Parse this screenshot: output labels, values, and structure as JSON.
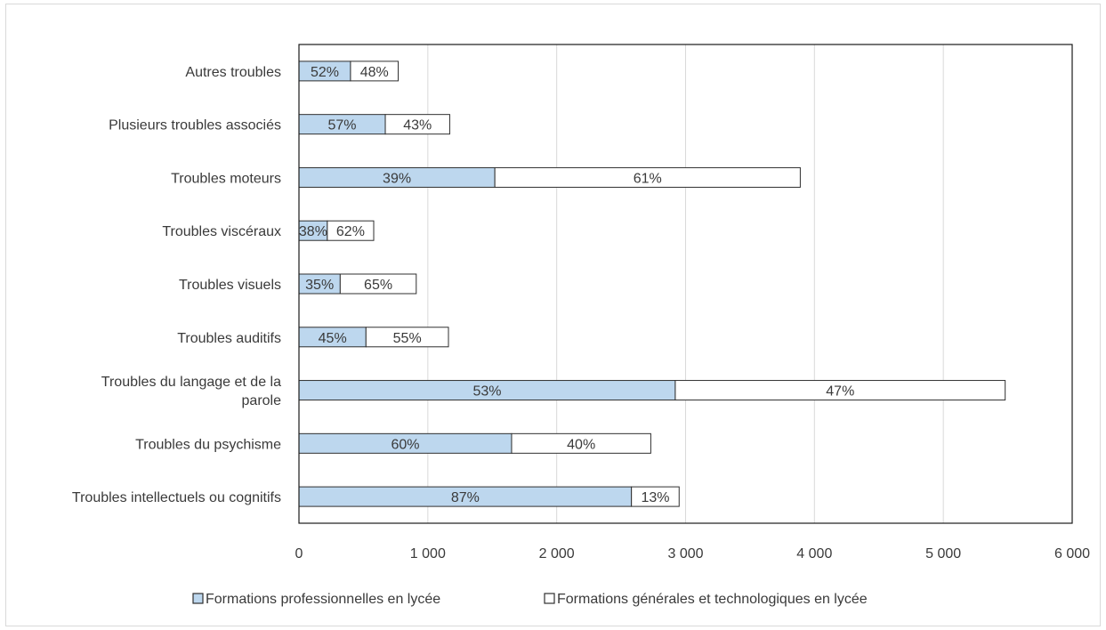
{
  "chart_data": {
    "type": "bar",
    "orientation": "horizontal",
    "stacked": true,
    "categories": [
      "Troubles intellectuels ou cognitifs",
      "Troubles du psychisme",
      "Troubles du langage et de la parole",
      "Troubles auditifs",
      "Troubles visuels",
      "Troubles viscéraux",
      "Troubles moteurs",
      "Plusieurs troubles associés",
      "Autres troubles"
    ],
    "category_lines": [
      [
        "Troubles intellectuels ou cognitifs"
      ],
      [
        "Troubles du psychisme"
      ],
      [
        "Troubles du langage et de la",
        "parole"
      ],
      [
        "Troubles auditifs"
      ],
      [
        "Troubles visuels"
      ],
      [
        "Troubles viscéraux"
      ],
      [
        "Troubles moteurs"
      ],
      [
        "Plusieurs troubles associés"
      ],
      [
        "Autres troubles"
      ]
    ],
    "series": [
      {
        "name": "Formations professionnelles en lycée",
        "color": "#bdd7ee",
        "values": [
          2580,
          1650,
          2920,
          520,
          320,
          220,
          1520,
          670,
          400
        ],
        "labels": [
          "87%",
          "60%",
          "53%",
          "45%",
          "35%",
          "38%",
          "39%",
          "57%",
          "52%"
        ]
      },
      {
        "name": "Formations générales et technologiques en lycée",
        "color": "#ffffff",
        "values": [
          370,
          1080,
          2560,
          640,
          590,
          360,
          2370,
          500,
          370
        ],
        "labels": [
          "13%",
          "40%",
          "47%",
          "55%",
          "65%",
          "62%",
          "61%",
          "43%",
          "48%"
        ]
      }
    ],
    "xlim": [
      0,
      6000
    ],
    "x_ticks": [
      0,
      1000,
      2000,
      3000,
      4000,
      5000,
      6000
    ],
    "x_tick_labels": [
      "0",
      "1 000",
      "2 000",
      "3 000",
      "4 000",
      "5 000",
      "6 000"
    ],
    "gridlines": "vertical",
    "legend_position": "bottom",
    "title": "",
    "xlabel": "",
    "ylabel": ""
  }
}
